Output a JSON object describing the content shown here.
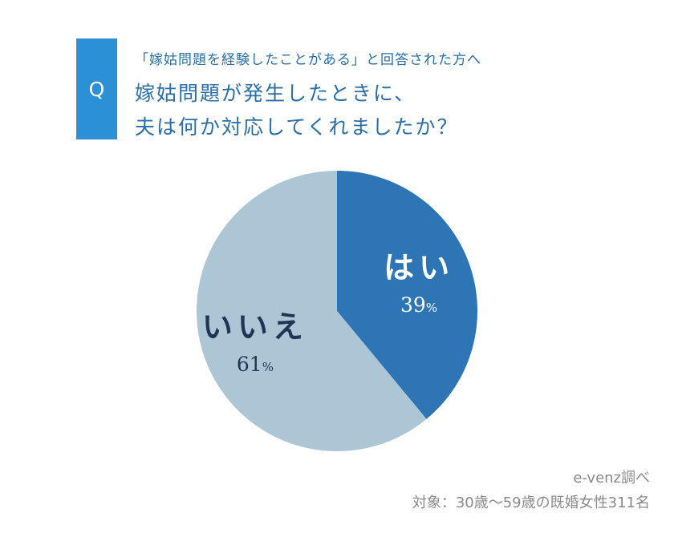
{
  "header": {
    "q_letter": "Q",
    "subtitle": "「嫁姑問題を経験したことがある」と回答された方へ",
    "title_lines": [
      "嫁姑問題が発生したときに、",
      "夫は何か対応してくれましたか？"
    ]
  },
  "chart_data": {
    "type": "pie",
    "slices": [
      {
        "label": "はい",
        "value": 39,
        "value_text": "39",
        "unit": "%",
        "color": "#2e75b6",
        "text_color": "#ffffff"
      },
      {
        "label": "いいえ",
        "value": 61,
        "value_text": "61",
        "unit": "%",
        "color": "#adc6d6",
        "text_color": "#1f3553"
      }
    ]
  },
  "footer": {
    "source": "e-venz調べ",
    "target": "対象：30歳〜59歳の既婚女性311名"
  }
}
